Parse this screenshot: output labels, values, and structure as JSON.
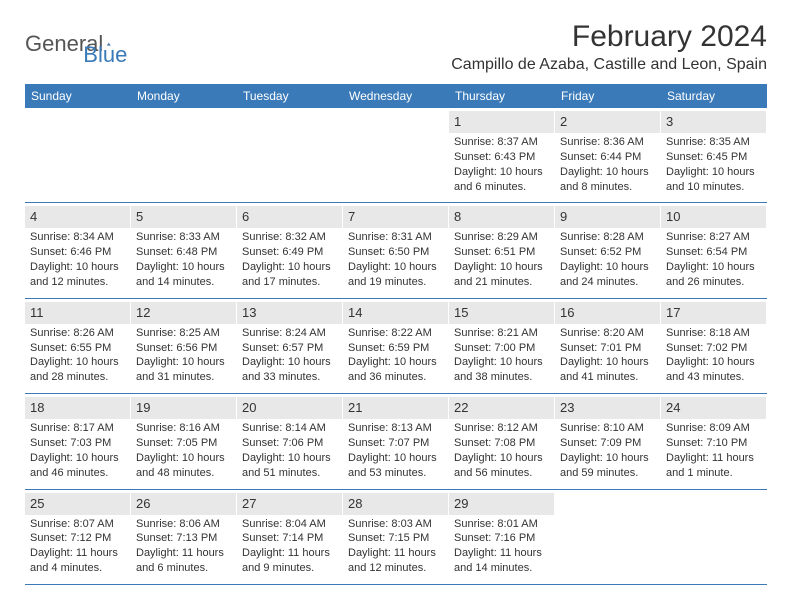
{
  "logo": {
    "general": "General",
    "blue": "Blue"
  },
  "title": "February 2024",
  "location": "Campillo de Azaba, Castille and Leon, Spain",
  "colors": {
    "header_bg": "#3a7ab8",
    "header_text": "#ffffff",
    "daynum_bg": "#e8e8e8",
    "text": "#333333",
    "border": "#3a7ab8"
  },
  "day_names": [
    "Sunday",
    "Monday",
    "Tuesday",
    "Wednesday",
    "Thursday",
    "Friday",
    "Saturday"
  ],
  "weeks": [
    [
      null,
      null,
      null,
      null,
      {
        "n": "1",
        "sr": "8:37 AM",
        "ss": "6:43 PM",
        "dl": "10 hours and 6 minutes."
      },
      {
        "n": "2",
        "sr": "8:36 AM",
        "ss": "6:44 PM",
        "dl": "10 hours and 8 minutes."
      },
      {
        "n": "3",
        "sr": "8:35 AM",
        "ss": "6:45 PM",
        "dl": "10 hours and 10 minutes."
      }
    ],
    [
      {
        "n": "4",
        "sr": "8:34 AM",
        "ss": "6:46 PM",
        "dl": "10 hours and 12 minutes."
      },
      {
        "n": "5",
        "sr": "8:33 AM",
        "ss": "6:48 PM",
        "dl": "10 hours and 14 minutes."
      },
      {
        "n": "6",
        "sr": "8:32 AM",
        "ss": "6:49 PM",
        "dl": "10 hours and 17 minutes."
      },
      {
        "n": "7",
        "sr": "8:31 AM",
        "ss": "6:50 PM",
        "dl": "10 hours and 19 minutes."
      },
      {
        "n": "8",
        "sr": "8:29 AM",
        "ss": "6:51 PM",
        "dl": "10 hours and 21 minutes."
      },
      {
        "n": "9",
        "sr": "8:28 AM",
        "ss": "6:52 PM",
        "dl": "10 hours and 24 minutes."
      },
      {
        "n": "10",
        "sr": "8:27 AM",
        "ss": "6:54 PM",
        "dl": "10 hours and 26 minutes."
      }
    ],
    [
      {
        "n": "11",
        "sr": "8:26 AM",
        "ss": "6:55 PM",
        "dl": "10 hours and 28 minutes."
      },
      {
        "n": "12",
        "sr": "8:25 AM",
        "ss": "6:56 PM",
        "dl": "10 hours and 31 minutes."
      },
      {
        "n": "13",
        "sr": "8:24 AM",
        "ss": "6:57 PM",
        "dl": "10 hours and 33 minutes."
      },
      {
        "n": "14",
        "sr": "8:22 AM",
        "ss": "6:59 PM",
        "dl": "10 hours and 36 minutes."
      },
      {
        "n": "15",
        "sr": "8:21 AM",
        "ss": "7:00 PM",
        "dl": "10 hours and 38 minutes."
      },
      {
        "n": "16",
        "sr": "8:20 AM",
        "ss": "7:01 PM",
        "dl": "10 hours and 41 minutes."
      },
      {
        "n": "17",
        "sr": "8:18 AM",
        "ss": "7:02 PM",
        "dl": "10 hours and 43 minutes."
      }
    ],
    [
      {
        "n": "18",
        "sr": "8:17 AM",
        "ss": "7:03 PM",
        "dl": "10 hours and 46 minutes."
      },
      {
        "n": "19",
        "sr": "8:16 AM",
        "ss": "7:05 PM",
        "dl": "10 hours and 48 minutes."
      },
      {
        "n": "20",
        "sr": "8:14 AM",
        "ss": "7:06 PM",
        "dl": "10 hours and 51 minutes."
      },
      {
        "n": "21",
        "sr": "8:13 AM",
        "ss": "7:07 PM",
        "dl": "10 hours and 53 minutes."
      },
      {
        "n": "22",
        "sr": "8:12 AM",
        "ss": "7:08 PM",
        "dl": "10 hours and 56 minutes."
      },
      {
        "n": "23",
        "sr": "8:10 AM",
        "ss": "7:09 PM",
        "dl": "10 hours and 59 minutes."
      },
      {
        "n": "24",
        "sr": "8:09 AM",
        "ss": "7:10 PM",
        "dl": "11 hours and 1 minute."
      }
    ],
    [
      {
        "n": "25",
        "sr": "8:07 AM",
        "ss": "7:12 PM",
        "dl": "11 hours and 4 minutes."
      },
      {
        "n": "26",
        "sr": "8:06 AM",
        "ss": "7:13 PM",
        "dl": "11 hours and 6 minutes."
      },
      {
        "n": "27",
        "sr": "8:04 AM",
        "ss": "7:14 PM",
        "dl": "11 hours and 9 minutes."
      },
      {
        "n": "28",
        "sr": "8:03 AM",
        "ss": "7:15 PM",
        "dl": "11 hours and 12 minutes."
      },
      {
        "n": "29",
        "sr": "8:01 AM",
        "ss": "7:16 PM",
        "dl": "11 hours and 14 minutes."
      },
      null,
      null
    ]
  ],
  "labels": {
    "sunrise": "Sunrise: ",
    "sunset": "Sunset: ",
    "daylight": "Daylight: "
  }
}
